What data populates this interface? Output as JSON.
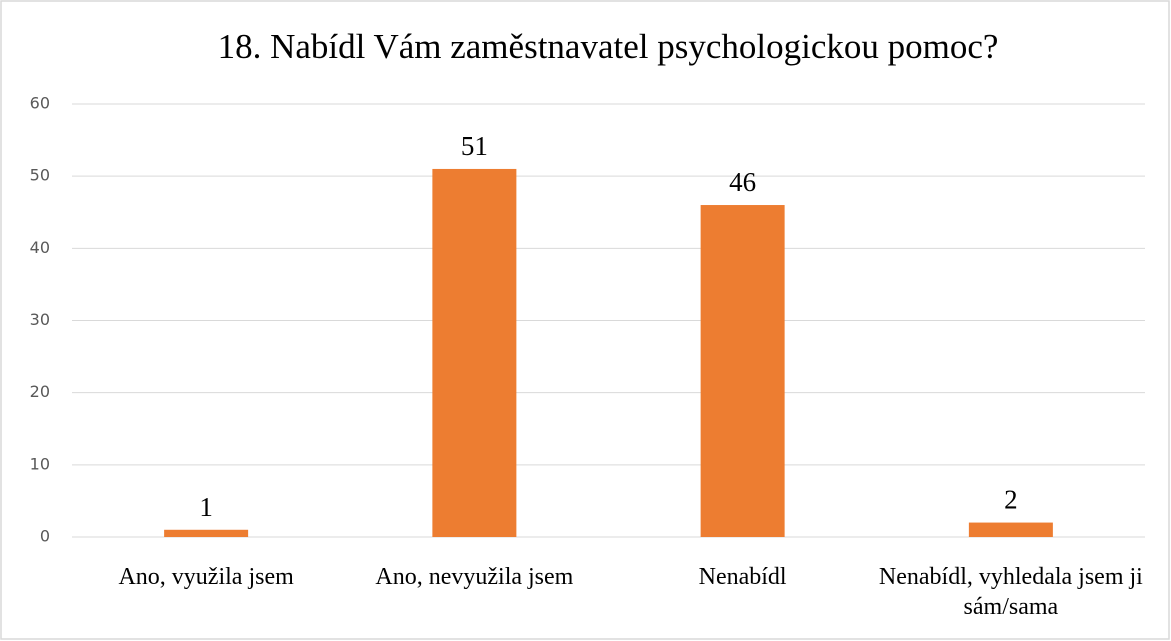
{
  "chart_data": {
    "type": "bar",
    "title": "18. Nabídl Vám zaměstnavatel psychologickou pomoc?",
    "categories": [
      "Ano, využila jsem",
      "Ano, nevyužila jsem",
      "Nenabídl",
      "Nenabídl, vyhledala jsem ji sám/sama"
    ],
    "values": [
      1,
      51,
      46,
      2
    ],
    "color": "#ed7d31",
    "ylim": [
      0,
      60
    ],
    "yticks": [
      0,
      10,
      20,
      30,
      40,
      50,
      60
    ],
    "grid": true
  }
}
